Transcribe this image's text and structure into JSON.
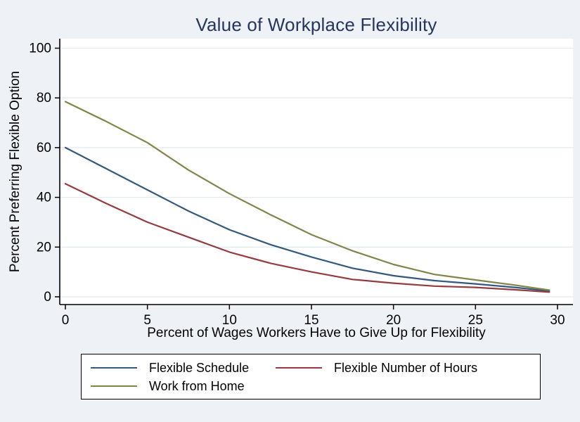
{
  "title": "Value of Workplace Flexibility",
  "colors": {
    "background": "#eef1f6",
    "plot_background": "#ffffff",
    "title_text": "#26355f",
    "axis_text": "#000000",
    "axis_line": "#000000",
    "gridline": "#e4eaf1",
    "legend_background": "#ffffff",
    "legend_border": "#000000"
  },
  "legend": {
    "items": [
      {
        "label": "Flexible Schedule"
      },
      {
        "label": "Flexible Number of Hours"
      },
      {
        "label": "Work from Home"
      }
    ]
  },
  "chart_data": {
    "type": "line",
    "title": "Value of Workplace Flexibility",
    "xlabel": "Percent of Wages Workers Have to Give Up for Flexibility",
    "ylabel": "Percent Preferring Flexible Option",
    "xlim": [
      0,
      30
    ],
    "ylim": [
      0,
      100
    ],
    "x_ticks": [
      0,
      5,
      10,
      15,
      20,
      25,
      30
    ],
    "y_ticks": [
      0,
      20,
      40,
      60,
      80,
      100
    ],
    "grid": "horizontal",
    "legend_position": "bottom",
    "x": [
      0,
      2.5,
      5,
      7.5,
      10,
      12.5,
      15,
      17.5,
      20,
      22.5,
      25,
      27.5,
      29.5
    ],
    "series": [
      {
        "name": "Flexible Schedule",
        "color": "#33597f",
        "values": [
          60,
          51.5,
          43,
          34.5,
          27,
          21,
          16,
          11.5,
          8.5,
          6.5,
          5.2,
          3.7,
          2.3
        ]
      },
      {
        "name": "Flexible Number of Hours",
        "color": "#943c3f",
        "values": [
          45.5,
          37.5,
          30,
          24,
          18,
          13.5,
          10,
          7,
          5.5,
          4.3,
          3.8,
          2.8,
          1.9
        ]
      },
      {
        "name": "Work from Home",
        "color": "#83844a",
        "values": [
          78.5,
          70.5,
          62,
          51,
          41.5,
          33,
          25,
          18.5,
          13,
          9,
          6.8,
          4.6,
          2.7
        ]
      }
    ]
  }
}
